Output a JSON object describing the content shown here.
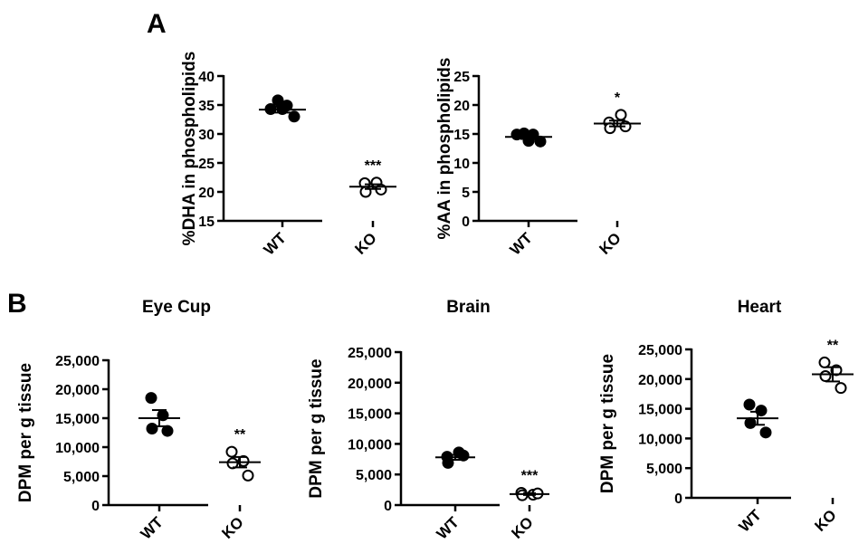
{
  "figure": {
    "panel_labels": [
      "A",
      "B"
    ]
  },
  "chart_data": [
    {
      "type": "scatter",
      "panel": "A",
      "title": "",
      "ylabel": "%DHA in phospholipids",
      "ylim": [
        15,
        40
      ],
      "yticks": [
        15,
        20,
        25,
        30,
        35,
        40
      ],
      "ytick_labels": [
        "15",
        "20",
        "25",
        "30",
        "35",
        "40"
      ],
      "categories": [
        "WT",
        "KO"
      ],
      "series": [
        {
          "values": [
            34.3,
            35.8,
            34.3,
            34.9,
            33.0
          ],
          "mean": 34.2,
          "sem": 0.5,
          "marker": "filled"
        },
        {
          "values": [
            21.5,
            21.6,
            20.0,
            20.4
          ],
          "mean": 20.9,
          "sem": 0.4,
          "marker": "open"
        }
      ],
      "annotations": [
        {
          "category": "KO",
          "text": "***"
        }
      ]
    },
    {
      "type": "scatter",
      "panel": "A",
      "title": "",
      "ylabel": "%AA in phospholipids",
      "ylim": [
        0,
        25
      ],
      "yticks": [
        0,
        5,
        10,
        15,
        20,
        25
      ],
      "ytick_labels": [
        "0",
        "5",
        "10",
        "15",
        "20",
        "25"
      ],
      "categories": [
        "WT",
        "KO"
      ],
      "series": [
        {
          "values": [
            14.9,
            15.1,
            13.8,
            14.9,
            13.7
          ],
          "mean": 14.5,
          "sem": 0.35,
          "marker": "filled"
        },
        {
          "values": [
            17.0,
            18.3,
            16.0,
            16.3
          ],
          "mean": 16.8,
          "sem": 0.5,
          "marker": "open"
        }
      ],
      "annotations": [
        {
          "category": "KO",
          "text": "*"
        }
      ]
    },
    {
      "type": "scatter",
      "panel": "B",
      "title": "Eye Cup",
      "ylabel": "DPM per g tissue",
      "ylim": [
        0,
        25000
      ],
      "yticks": [
        0,
        5000,
        10000,
        15000,
        20000,
        25000
      ],
      "ytick_labels": [
        "0",
        "5,000",
        "10,000",
        "15,000",
        "20,000",
        "25,000"
      ],
      "categories": [
        "WT",
        "KO"
      ],
      "series": [
        {
          "values": [
            18500,
            15500,
            13200,
            12800
          ],
          "mean": 15000,
          "sem": 1400,
          "marker": "filled"
        },
        {
          "values": [
            9200,
            7600,
            7200,
            5100
          ],
          "mean": 7400,
          "sem": 900,
          "marker": "open"
        }
      ],
      "annotations": [
        {
          "category": "KO",
          "text": "**"
        }
      ]
    },
    {
      "type": "scatter",
      "panel": "B",
      "title": "Brain",
      "ylabel": "DPM per g tissue",
      "ylim": [
        0,
        25000
      ],
      "yticks": [
        0,
        5000,
        10000,
        15000,
        20000,
        25000
      ],
      "ytick_labels": [
        "0",
        "5,000",
        "10,000",
        "15,000",
        "20,000",
        "25,000"
      ],
      "categories": [
        "WT",
        "KO"
      ],
      "series": [
        {
          "values": [
            7900,
            8600,
            6900,
            8100
          ],
          "mean": 7800,
          "sem": 400,
          "marker": "filled"
        },
        {
          "values": [
            2000,
            1700,
            1600,
            1900
          ],
          "mean": 1800,
          "sem": 150,
          "marker": "open"
        }
      ],
      "annotations": [
        {
          "category": "KO",
          "text": "***"
        }
      ]
    },
    {
      "type": "scatter",
      "panel": "B",
      "title": "Heart",
      "ylabel": "DPM per g tissue",
      "ylim": [
        0,
        25000
      ],
      "yticks": [
        0,
        5000,
        10000,
        15000,
        20000,
        25000
      ],
      "ytick_labels": [
        "0",
        "5,000",
        "10,000",
        "15,000",
        "20,000",
        "25,000"
      ],
      "categories": [
        "WT",
        "KO"
      ],
      "series": [
        {
          "values": [
            15700,
            14700,
            12600,
            11000
          ],
          "mean": 13400,
          "sem": 1100,
          "marker": "filled"
        },
        {
          "values": [
            22800,
            21500,
            20500,
            18500
          ],
          "mean": 20800,
          "sem": 1200,
          "marker": "open"
        }
      ],
      "annotations": [
        {
          "category": "KO",
          "text": "**"
        }
      ]
    }
  ]
}
